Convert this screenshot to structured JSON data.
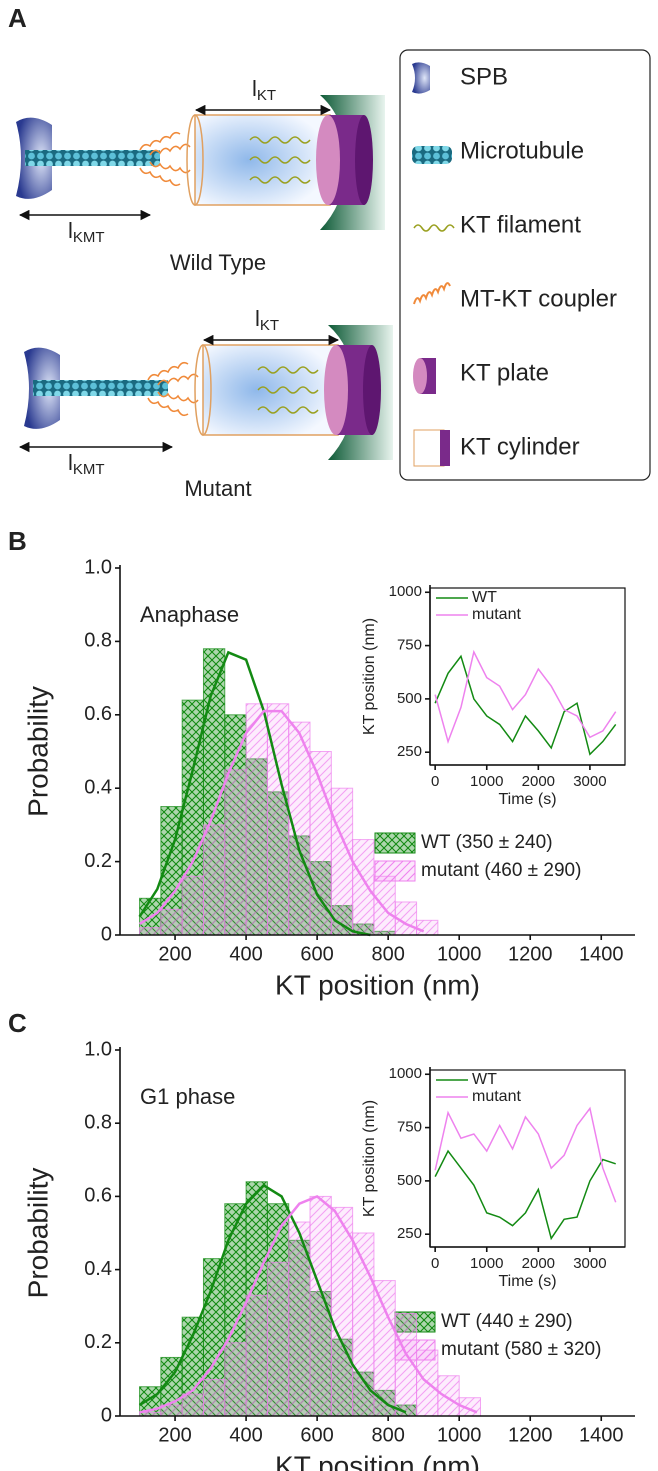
{
  "panel_a": {
    "label": "A",
    "l_kt": {
      "main": "l",
      "sub": "KT"
    },
    "l_kmt": {
      "main": "l",
      "sub": "KMT"
    },
    "wild_type": "Wild Type",
    "mutant": "Mutant",
    "legend": [
      "SPB",
      "Microtubule",
      "KT filament",
      "MT-KT coupler",
      "KT plate",
      "KT cylinder"
    ]
  },
  "chart_data": [
    {
      "type": "histogram",
      "panel_label": "B",
      "annotation": "Anaphase",
      "xlabel": "KT position (nm)",
      "ylabel": "Probability",
      "xlim": [
        45,
        1495
      ],
      "ylim": [
        0,
        1
      ],
      "xticks": [
        200,
        400,
        600,
        800,
        1000,
        1200,
        1400
      ],
      "yticks": [
        0,
        0.2,
        0.4,
        0.6,
        0.8,
        {
          "value": 1,
          "label": "1.0"
        }
      ],
      "legend": "center right",
      "series": [
        {
          "name": "WT (350 ± 240)",
          "color": "#138a13",
          "pattern": "crosshatch",
          "bins": [
            100,
            160,
            220,
            280,
            340,
            400,
            460,
            520,
            580,
            640,
            700,
            760,
            820
          ],
          "values": [
            0.1,
            0.35,
            0.64,
            0.78,
            0.6,
            0.48,
            0.39,
            0.27,
            0.2,
            0.08,
            0.03,
            0.01
          ],
          "fit": {
            "x": [
              100,
              150,
              200,
              250,
              300,
              350,
              400,
              450,
              500,
              550,
              600,
              650,
              700,
              750
            ],
            "values": [
              0.05,
              0.125,
              0.26,
              0.45,
              0.65,
              0.77,
              0.75,
              0.61,
              0.41,
              0.23,
              0.11,
              0.04,
              0.01,
              0
            ]
          }
        },
        {
          "name": "mutant (460 ± 290)",
          "color": "#ee82ee",
          "pattern": "diagonal",
          "bins": [
            100,
            160,
            220,
            280,
            340,
            400,
            460,
            520,
            580,
            640,
            700,
            760,
            820,
            880,
            940
          ],
          "values": [
            0.02,
            0.07,
            0.16,
            0.3,
            0.45,
            0.63,
            0.63,
            0.58,
            0.5,
            0.4,
            0.26,
            0.16,
            0.09,
            0.04
          ],
          "fit": {
            "x": [
              100,
              150,
              200,
              250,
              300,
              350,
              400,
              450,
              500,
              550,
              600,
              650,
              700,
              750,
              800,
              850,
              900
            ],
            "values": [
              0.03,
              0.06,
              0.12,
              0.2,
              0.31,
              0.44,
              0.55,
              0.61,
              0.61,
              0.55,
              0.44,
              0.31,
              0.2,
              0.12,
              0.06,
              0.03,
              0.01
            ]
          }
        }
      ]
    },
    {
      "type": "line",
      "xlabel": "Time (s)",
      "ylabel": "KT position (nm)",
      "xlim": [
        -100,
        3680
      ],
      "ylim": [
        190,
        1020
      ],
      "xticks": [
        0,
        1000,
        2000,
        3000
      ],
      "yticks": [
        250,
        500,
        750,
        1000
      ],
      "legend": "upper left",
      "series": [
        {
          "name": "WT",
          "color": "#138a13",
          "x": [
            0,
            250,
            500,
            750,
            1000,
            1250,
            1500,
            1750,
            2000,
            2250,
            2500,
            2750,
            3000,
            3250,
            3500
          ],
          "values": [
            480,
            620,
            700,
            500,
            420,
            380,
            300,
            420,
            350,
            270,
            440,
            480,
            240,
            300,
            380
          ]
        },
        {
          "name": "mutant",
          "color": "#ee82ee",
          "x": [
            0,
            250,
            500,
            750,
            1000,
            1250,
            1500,
            1750,
            2000,
            2250,
            2500,
            2750,
            3000,
            3250,
            3500
          ],
          "values": [
            520,
            300,
            460,
            720,
            600,
            560,
            450,
            520,
            640,
            560,
            450,
            420,
            320,
            350,
            440
          ]
        }
      ]
    },
    {
      "type": "histogram",
      "panel_label": "C",
      "annotation": "G1  phase",
      "xlabel": "KT position (nm)",
      "ylabel": "Probability",
      "xlim": [
        45,
        1495
      ],
      "ylim": [
        0,
        1
      ],
      "xticks": [
        200,
        400,
        600,
        800,
        1000,
        1200,
        1400
      ],
      "yticks": [
        0,
        0.2,
        0.4,
        0.6,
        0.8,
        {
          "value": 1,
          "label": "1.0"
        }
      ],
      "legend": "center right",
      "series": [
        {
          "name": "WT (440 ± 290)",
          "color": "#138a13",
          "pattern": "crosshatch",
          "bins": [
            100,
            160,
            220,
            280,
            340,
            400,
            460,
            520,
            580,
            640,
            700,
            760,
            820,
            880
          ],
          "values": [
            0.08,
            0.16,
            0.27,
            0.43,
            0.58,
            0.64,
            0.58,
            0.48,
            0.34,
            0.21,
            0.12,
            0.07,
            0.03
          ],
          "fit": {
            "x": [
              100,
              150,
              200,
              250,
              300,
              350,
              400,
              450,
              500,
              550,
              600,
              650,
              700,
              750,
              800,
              850
            ],
            "values": [
              0.03,
              0.06,
              0.12,
              0.22,
              0.34,
              0.48,
              0.58,
              0.63,
              0.6,
              0.5,
              0.37,
              0.24,
              0.14,
              0.07,
              0.03,
              0.01
            ]
          }
        },
        {
          "name": "mutant (580 ± 320)",
          "color": "#ee82ee",
          "pattern": "diagonal",
          "bins": [
            100,
            160,
            220,
            280,
            340,
            400,
            460,
            520,
            580,
            640,
            700,
            760,
            820,
            880,
            940,
            1000,
            1060
          ],
          "values": [
            0.01,
            0.03,
            0.06,
            0.1,
            0.2,
            0.33,
            0.42,
            0.53,
            0.6,
            0.57,
            0.5,
            0.37,
            0.28,
            0.18,
            0.11,
            0.05
          ],
          "fit": {
            "x": [
              100,
              150,
              200,
              250,
              300,
              350,
              400,
              450,
              500,
              550,
              600,
              650,
              700,
              750,
              800,
              850,
              900,
              950,
              1000,
              1050
            ],
            "values": [
              0.01,
              0.02,
              0.04,
              0.07,
              0.13,
              0.21,
              0.31,
              0.42,
              0.52,
              0.58,
              0.6,
              0.56,
              0.48,
              0.38,
              0.27,
              0.17,
              0.1,
              0.06,
              0.03,
              0.01
            ]
          }
        }
      ]
    },
    {
      "type": "line",
      "xlabel": "Time (s)",
      "ylabel": "KT position (nm)",
      "xlim": [
        -100,
        3680
      ],
      "ylim": [
        190,
        1020
      ],
      "xticks": [
        0,
        1000,
        2000,
        3000
      ],
      "yticks": [
        250,
        500,
        750,
        1000
      ],
      "legend": "upper left",
      "series": [
        {
          "name": "WT",
          "color": "#138a13",
          "x": [
            0,
            250,
            500,
            750,
            1000,
            1250,
            1500,
            1750,
            2000,
            2250,
            2500,
            2750,
            3000,
            3250,
            3500
          ],
          "values": [
            520,
            640,
            560,
            480,
            350,
            330,
            290,
            350,
            460,
            230,
            320,
            330,
            500,
            600,
            580
          ]
        },
        {
          "name": "mutant",
          "color": "#ee82ee",
          "x": [
            0,
            250,
            500,
            750,
            1000,
            1250,
            1500,
            1750,
            2000,
            2250,
            2500,
            2750,
            3000,
            3250,
            3500
          ],
          "values": [
            550,
            820,
            700,
            720,
            640,
            760,
            650,
            800,
            720,
            560,
            620,
            760,
            840,
            560,
            400
          ]
        }
      ]
    }
  ]
}
